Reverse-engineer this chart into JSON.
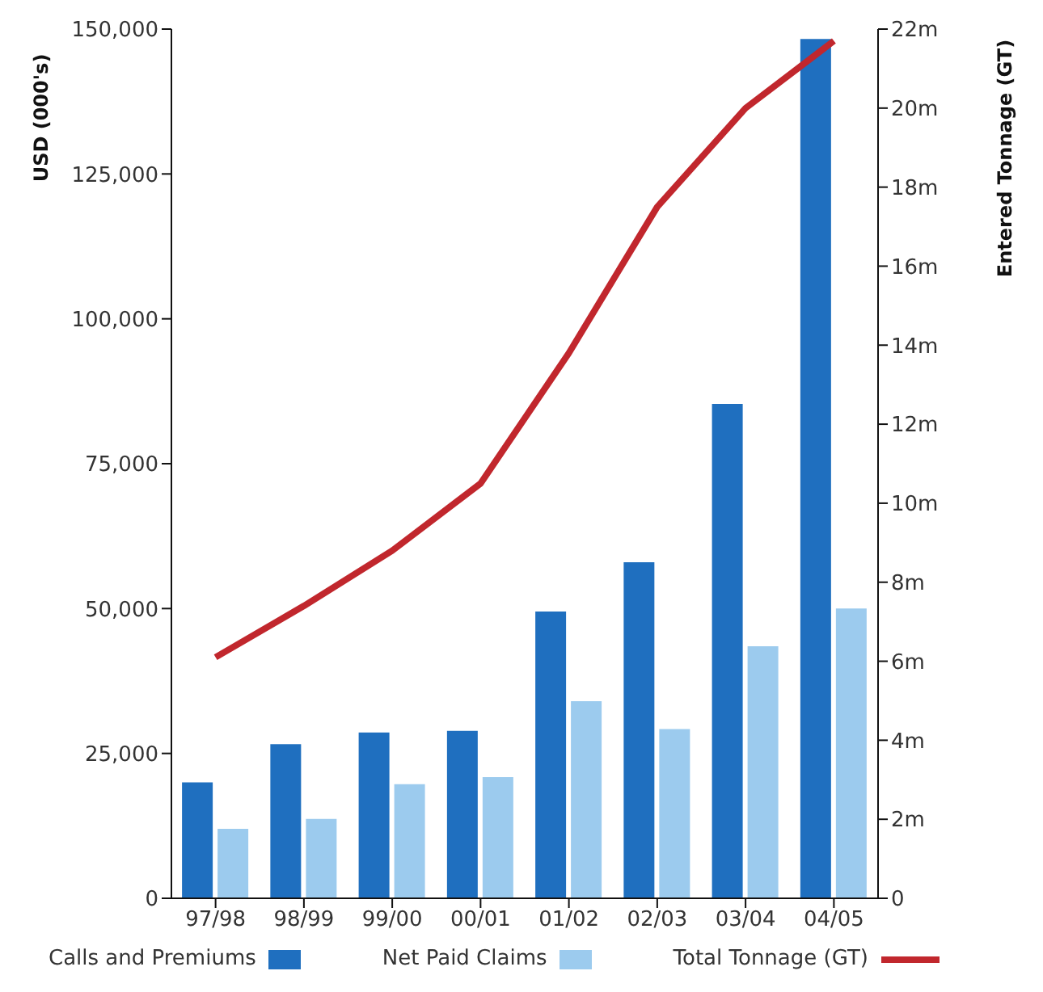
{
  "chart_data": {
    "type": "bar",
    "ylabel": "USD (000's)",
    "y2label": "Entered Tonnage (GT)",
    "categories": [
      "97/98",
      "98/99",
      "99/00",
      "00/01",
      "01/02",
      "02/03",
      "03/04",
      "04/05"
    ],
    "series": [
      {
        "name": "Calls and Premiums",
        "color": "#1f6fbf",
        "values": [
          20000,
          26600,
          28600,
          28900,
          49500,
          58000,
          85300,
          148300
        ]
      },
      {
        "name": "Net Paid Claims",
        "color": "#9ccbee",
        "values": [
          12000,
          13700,
          19700,
          20900,
          34000,
          29200,
          43500,
          50000
        ]
      },
      {
        "name": "Total Tonnage (GT)",
        "type": "line",
        "axis": "y2",
        "color": "#c1272d",
        "values": [
          6.1,
          7.4,
          8.8,
          10.5,
          13.8,
          17.5,
          20.0,
          21.7
        ]
      }
    ],
    "ylim": [
      0,
      150000
    ],
    "yticks": [
      {
        "value": 0,
        "label": "0"
      },
      {
        "value": 25000,
        "label": "25,000"
      },
      {
        "value": 50000,
        "label": "50,000"
      },
      {
        "value": 75000,
        "label": "75,000"
      },
      {
        "value": 100000,
        "label": "100,000"
      },
      {
        "value": 125000,
        "label": "125,000"
      },
      {
        "value": 150000,
        "label": "150,000"
      }
    ],
    "y2lim": [
      0,
      22
    ],
    "y2ticks": [
      {
        "value": 0,
        "label": "0"
      },
      {
        "value": 2,
        "label": "2m"
      },
      {
        "value": 4,
        "label": "4m"
      },
      {
        "value": 6,
        "label": "6m"
      },
      {
        "value": 8,
        "label": "8m"
      },
      {
        "value": 10,
        "label": "10m"
      },
      {
        "value": 12,
        "label": "12m"
      },
      {
        "value": 14,
        "label": "14m"
      },
      {
        "value": 16,
        "label": "16m"
      },
      {
        "value": 18,
        "label": "18m"
      },
      {
        "value": 20,
        "label": "20m"
      },
      {
        "value": 22,
        "label": "22m"
      }
    ],
    "grid": false,
    "legend": "bottom"
  }
}
